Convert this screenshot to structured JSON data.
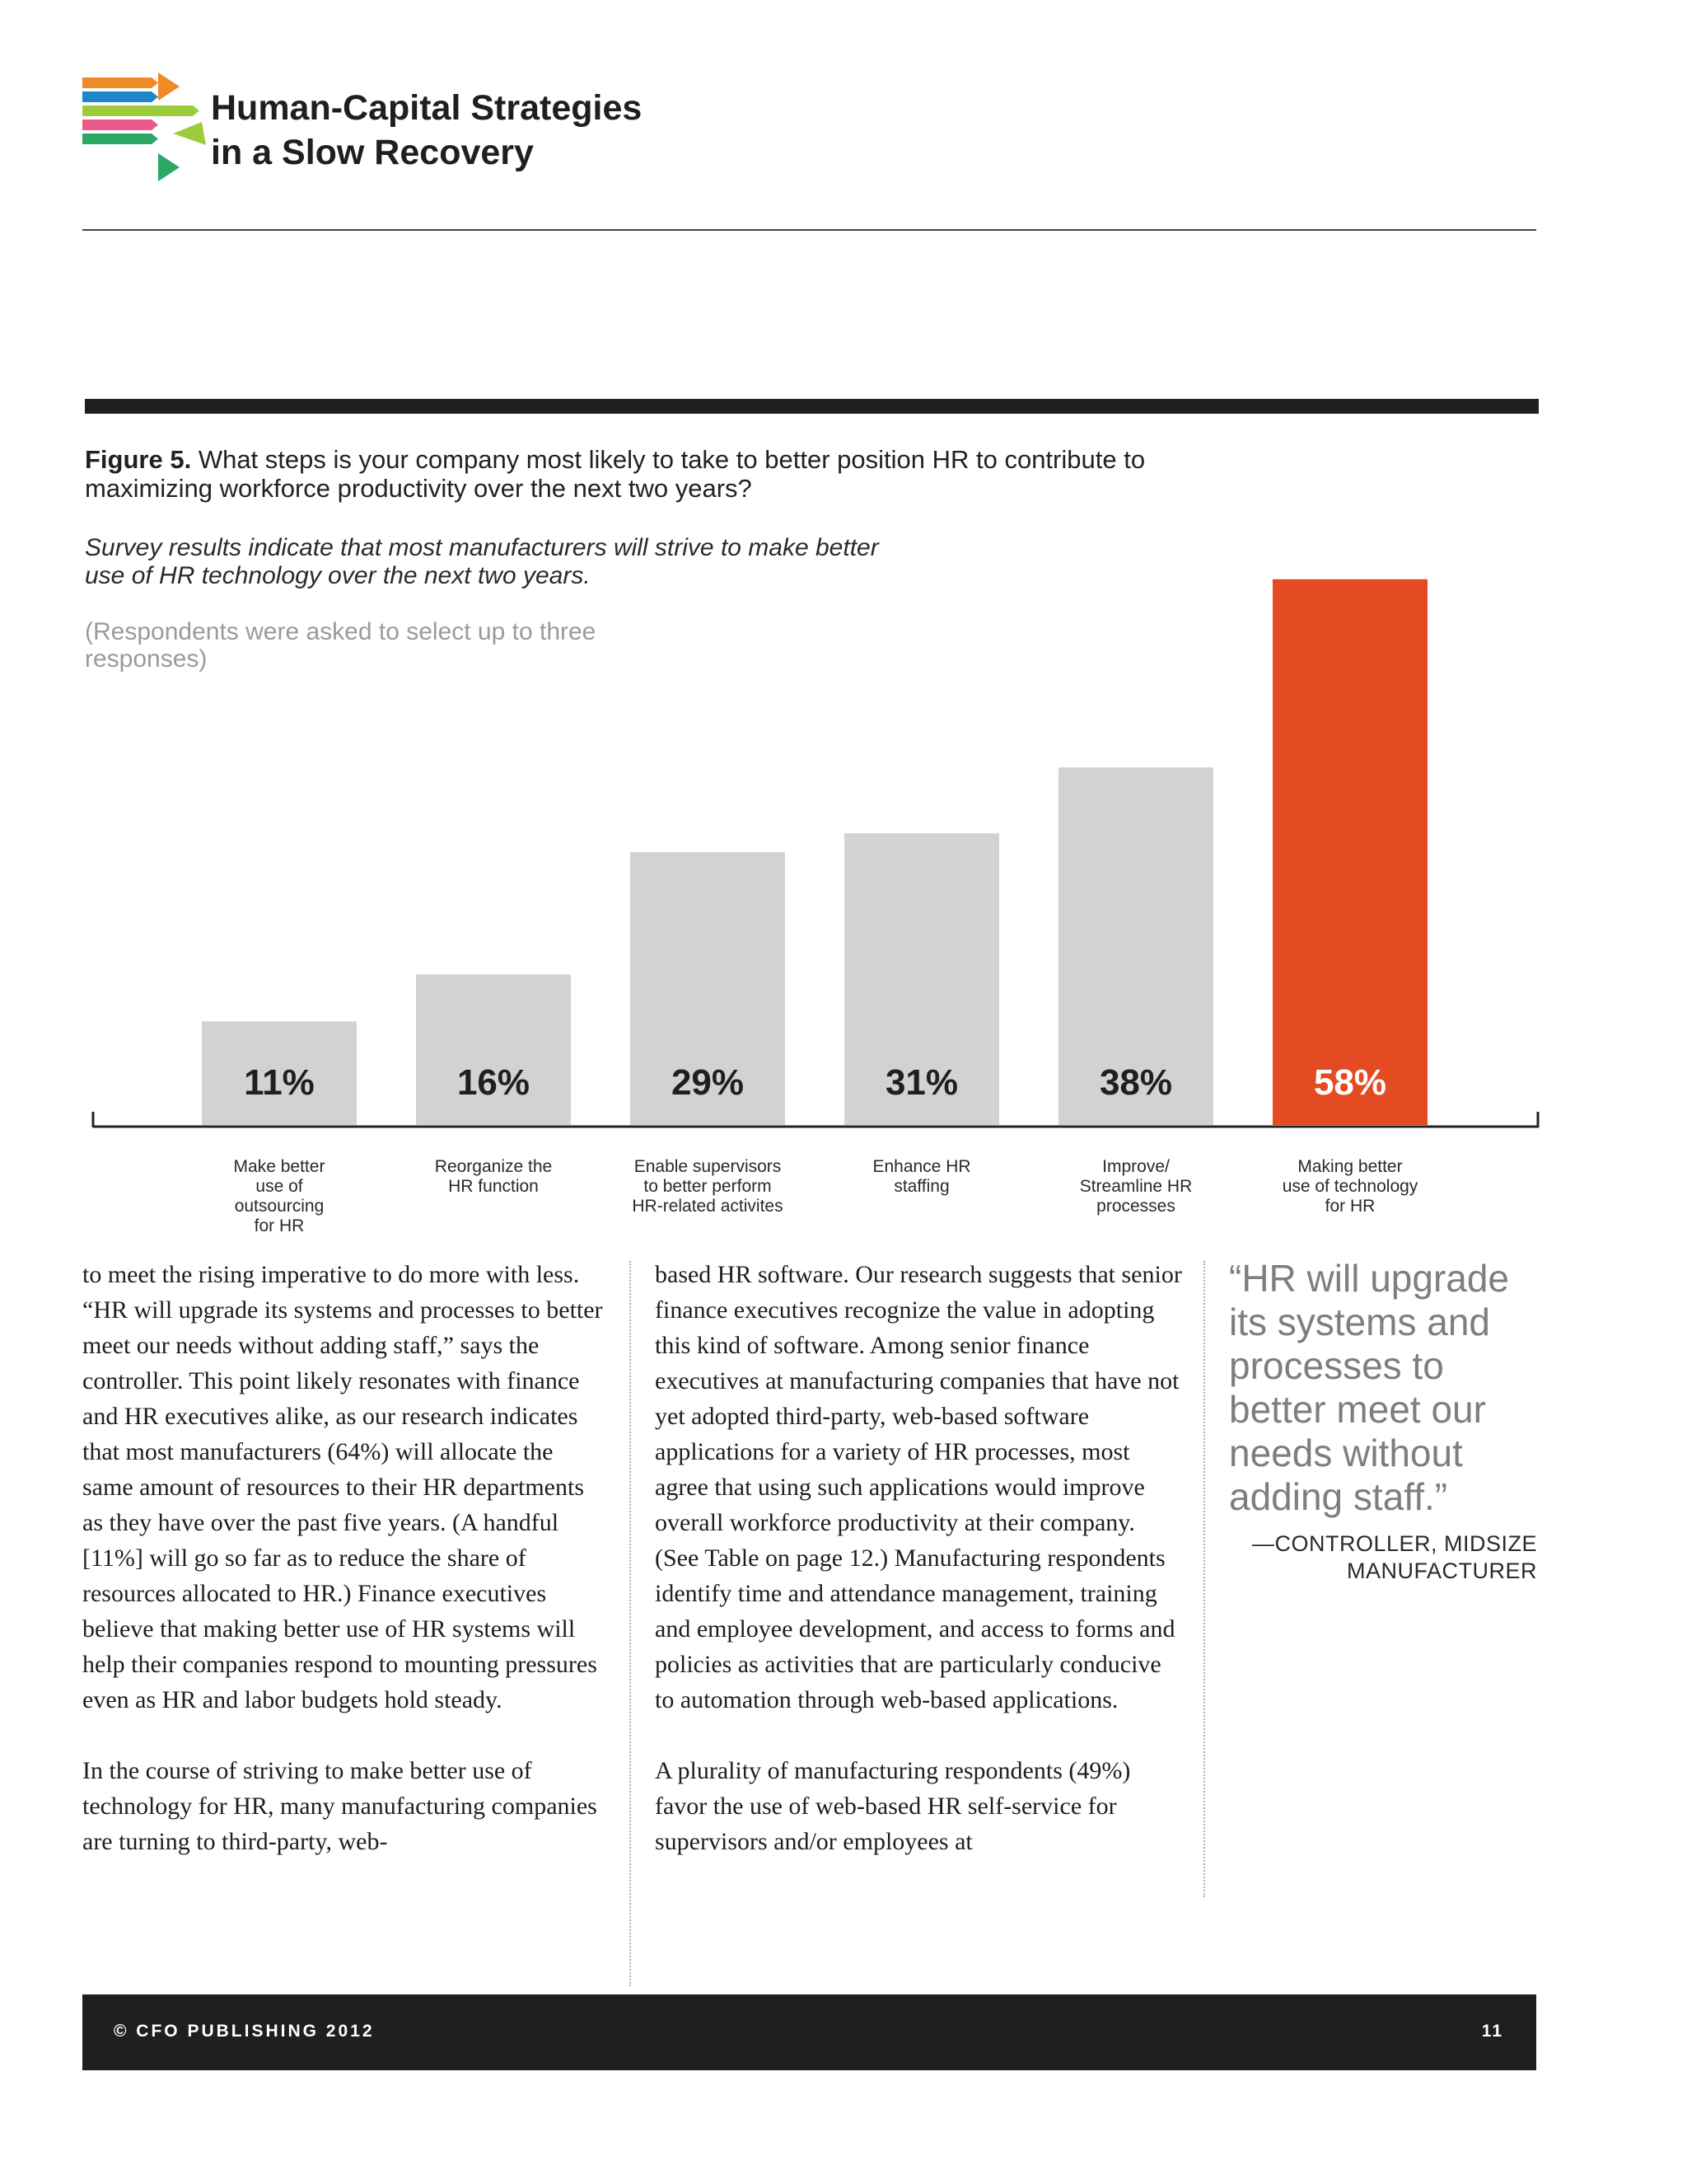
{
  "header": {
    "title_line1": "Human-Capital Strategies",
    "title_line2": "in a Slow Recovery"
  },
  "figure": {
    "label": "Figure 5.",
    "question": " What steps is your company most likely to take to better position HR to contribute to maximizing workforce productivity over the next two years?",
    "subtitle": "Survey results indicate that most manufacturers will strive to make better use of HR technology over the next two years.",
    "note": "(Respondents were asked to select up to three responses)"
  },
  "chart_data": {
    "type": "bar",
    "categories": [
      [
        "Make better",
        "use of",
        "outsourcing",
        "for HR"
      ],
      [
        "Reorganize the",
        "HR function"
      ],
      [
        "Enable supervisors",
        "to better perform",
        "HR-related activites"
      ],
      [
        "Enhance HR",
        "staffing"
      ],
      [
        "Improve/",
        "Streamline HR",
        "processes"
      ],
      [
        "Making better",
        "use of technology",
        "for HR"
      ]
    ],
    "values": [
      11,
      16,
      29,
      31,
      38,
      58
    ],
    "value_labels": [
      "11%",
      "16%",
      "29%",
      "31%",
      "38%",
      "58%"
    ],
    "highlight_index": 5,
    "colors": {
      "default": "#d2d2d4",
      "highlight": "#e54b22",
      "label_default": "#1f1f1f",
      "label_highlight": "#ffffff",
      "axis": "#222222"
    },
    "ylim": [
      0,
      60
    ],
    "grid": false,
    "legend": "none"
  },
  "body": {
    "col1_p1": "to meet the rising imperative to do more with less. “HR will upgrade its systems and processes to better meet our needs without adding staff,” says the controller. This point likely resonates with finance and HR executives alike, as our research indicates that most manufacturers (64%) will allocate the same amount of resources to their HR departments as they have over the past five years. (A handful [11%] will go so far as to reduce the share of resources allocated to HR.) Finance executives believe that making better use of HR systems will help their companies respond to mounting pressures even as HR and labor budgets hold steady.",
    "col1_p2": "In the course of striving to make better use of technology for HR, many manufacturing companies are turning to third-party, web-",
    "col2_p1": "based HR software. Our research suggests that senior finance executives recognize the value in adopting this kind of software. Among senior finance executives at manufacturing companies that have not yet adopted third-party, web-based software applications for a variety of HR processes, most agree that using such applications would improve overall workforce productivity at their company. (See Table on page 12.) Manufacturing respondents identify time and attendance management, training and employee development, and access to forms and policies as activities that are particularly conducive to automation through web-based applications.",
    "col2_p2": "A plurality of manufacturing respondents (49%) favor the use of web-based HR self-service for supervisors and/or employees at"
  },
  "quote": {
    "text": "“HR will upgrade its systems and processes to better meet our needs without adding staff.”",
    "attribution": "—CONTROLLER, MIDSIZE MANUFACTURER"
  },
  "footer": {
    "copyright": "© CFO PUBLISHING 2012",
    "page_number": "11"
  },
  "logo": {
    "icon": "arrows-logo-icon",
    "stripe_colors": [
      "#f08a24",
      "#1f86c8",
      "#9ccb3b",
      "#ea5b8c",
      "#2aa864"
    ]
  }
}
